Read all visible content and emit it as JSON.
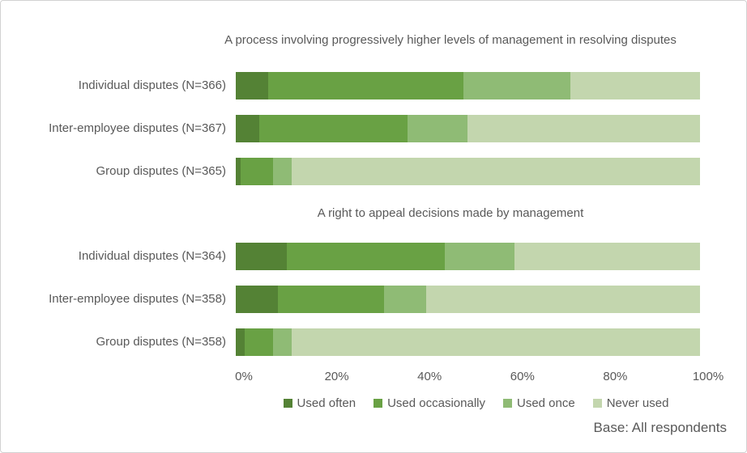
{
  "figure": {
    "background": "#ffffff",
    "border_color": "#d2d2d2",
    "text_color": "#595959"
  },
  "chart_data": {
    "type": "bar",
    "orientation": "horizontal",
    "stacked": true,
    "unit": "percent",
    "x_axis": {
      "min": 0,
      "max": 100,
      "ticks": [
        "0%",
        "20%",
        "40%",
        "60%",
        "80%",
        "100%"
      ],
      "grid": false
    },
    "legend": {
      "position": "bottom",
      "entries": [
        {
          "label": "Used often",
          "color": "#548235"
        },
        {
          "label": "Used occasionally",
          "color": "#69A144"
        },
        {
          "label": "Used once",
          "color": "#8FBB75"
        },
        {
          "label": "Never used",
          "color": "#C3D6AE"
        }
      ]
    },
    "groups": [
      {
        "title": "A process involving progressively higher levels of management in resolving disputes",
        "rows": [
          {
            "label": "Individual disputes (N=366)",
            "values": [
              7,
              42,
              23,
              28
            ]
          },
          {
            "label": "Inter-employee disputes (N=367)",
            "values": [
              5,
              32,
              13,
              50
            ]
          },
          {
            "label": "Group disputes (N=365)",
            "values": [
              1,
              7,
              4,
              88
            ]
          }
        ]
      },
      {
        "title": "A right to appeal decisions made by management",
        "rows": [
          {
            "label": "Individual disputes (N=364)",
            "values": [
              11,
              34,
              15,
              40
            ]
          },
          {
            "label": "Inter-employee disputes (N=358)",
            "values": [
              9,
              23,
              9,
              59
            ]
          },
          {
            "label": "Group disputes (N=358)",
            "values": [
              2,
              6,
              4,
              88
            ]
          }
        ]
      }
    ],
    "footnote": "Base: All respondents"
  }
}
